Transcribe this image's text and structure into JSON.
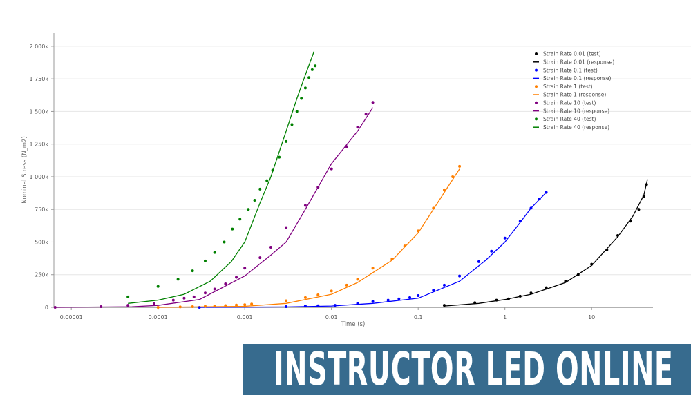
{
  "chart_data": {
    "type": "scatter",
    "xlabel": "Time (s)",
    "ylabel": "Nominal Stress (N_m2)",
    "xscale": "log",
    "xlim": [
      6.3e-06,
      51
    ],
    "ylim": [
      0,
      2100000
    ],
    "x_ticks": [
      {
        "v": 1e-05,
        "label": "0.00001"
      },
      {
        "v": 0.0001,
        "label": "0.0001"
      },
      {
        "v": 0.001,
        "label": "0.001"
      },
      {
        "v": 0.01,
        "label": "0.01"
      },
      {
        "v": 0.1,
        "label": "0.1"
      },
      {
        "v": 1,
        "label": "1"
      },
      {
        "v": 10,
        "label": "10"
      }
    ],
    "y_ticks": [
      {
        "v": 0,
        "label": "0"
      },
      {
        "v": 250000,
        "label": "250k"
      },
      {
        "v": 500000,
        "label": "500k"
      },
      {
        "v": 750000,
        "label": "750k"
      },
      {
        "v": 1000000,
        "label": "1 000k"
      },
      {
        "v": 1250000,
        "label": "1 250k"
      },
      {
        "v": 1500000,
        "label": "1 500k"
      },
      {
        "v": 1750000,
        "label": "1 750k"
      },
      {
        "v": 2000000,
        "label": "2 000k"
      }
    ],
    "grid": "horizontal",
    "legend_position": "top-right",
    "series": [
      {
        "name": "Strain Rate 0.01 (test)",
        "kind": "points",
        "color": "#000000",
        "x": [
          0.2,
          0.45,
          0.8,
          1.1,
          1.5,
          2,
          3,
          5,
          7,
          10,
          15,
          20,
          28,
          35,
          40,
          43
        ],
        "y": [
          15000,
          35000,
          55000,
          65000,
          85000,
          110000,
          150000,
          200000,
          250000,
          330000,
          440000,
          550000,
          660000,
          750000,
          850000,
          940000
        ]
      },
      {
        "name": "Strain Rate 0.01 (response)",
        "kind": "line",
        "color": "#000000",
        "x": [
          0.2,
          0.5,
          1,
          2,
          5,
          10,
          20,
          30,
          40,
          44
        ],
        "y": [
          10000,
          30000,
          60000,
          100000,
          190000,
          320000,
          540000,
          700000,
          860000,
          980000
        ]
      },
      {
        "name": "Strain Rate 0.1 (test)",
        "kind": "points",
        "color": "#0000ff",
        "x": [
          0.0003,
          0.003,
          0.005,
          0.007,
          0.011,
          0.02,
          0.03,
          0.045,
          0.06,
          0.08,
          0.1,
          0.15,
          0.2,
          0.3,
          0.5,
          0.7,
          1,
          1.5,
          2,
          2.5,
          3
        ],
        "y": [
          0,
          5000,
          10000,
          12000,
          15000,
          30000,
          45000,
          55000,
          65000,
          75000,
          90000,
          130000,
          170000,
          240000,
          350000,
          430000,
          530000,
          660000,
          760000,
          830000,
          880000
        ]
      },
      {
        "name": "Strain Rate 0.1 (response)",
        "kind": "line",
        "color": "#0000ff",
        "x": [
          0.0003,
          0.003,
          0.01,
          0.03,
          0.1,
          0.3,
          0.6,
          1,
          1.5,
          2,
          3
        ],
        "y": [
          0,
          3000,
          10000,
          30000,
          70000,
          200000,
          360000,
          500000,
          650000,
          760000,
          880000
        ]
      },
      {
        "name": "Strain Rate 1 (test)",
        "kind": "points",
        "color": "#ff7f00",
        "x": [
          0.0001,
          0.00018,
          0.00025,
          0.00035,
          0.00045,
          0.0006,
          0.0008,
          0.001,
          0.0012,
          0.003,
          0.005,
          0.007,
          0.01,
          0.015,
          0.02,
          0.03,
          0.05,
          0.07,
          0.1,
          0.15,
          0.2,
          0.25,
          0.3
        ],
        "y": [
          0,
          3000,
          5000,
          8000,
          10000,
          13000,
          17000,
          20000,
          25000,
          50000,
          75000,
          95000,
          125000,
          170000,
          215000,
          300000,
          370000,
          470000,
          585000,
          760000,
          900000,
          1000000,
          1080000
        ]
      },
      {
        "name": "Strain Rate 1 (response)",
        "kind": "line",
        "color": "#ff7f00",
        "x": [
          0.0001,
          0.001,
          0.003,
          0.01,
          0.02,
          0.05,
          0.1,
          0.2,
          0.3
        ],
        "y": [
          0,
          8000,
          30000,
          100000,
          190000,
          360000,
          570000,
          880000,
          1060000
        ]
      },
      {
        "name": "Strain Rate 10 (test)",
        "kind": "points",
        "color": "#800080",
        "x": [
          6.5e-06,
          2.2e-05,
          4.5e-05,
          9e-05,
          0.00015,
          0.0002,
          0.00026,
          0.00035,
          0.00045,
          0.0006,
          0.0008,
          0.001,
          0.0015,
          0.002,
          0.003,
          0.005,
          0.007,
          0.01,
          0.015,
          0.02,
          0.025,
          0.03
        ],
        "y": [
          0,
          5000,
          15000,
          30000,
          55000,
          70000,
          80000,
          110000,
          140000,
          180000,
          230000,
          300000,
          380000,
          460000,
          610000,
          780000,
          920000,
          1060000,
          1230000,
          1380000,
          1480000,
          1570000
        ]
      },
      {
        "name": "Strain Rate 10 (response)",
        "kind": "line",
        "color": "#800080",
        "x": [
          6.5e-06,
          5e-05,
          0.0001,
          0.0003,
          0.001,
          0.002,
          0.003,
          0.005,
          0.01,
          0.02,
          0.03
        ],
        "y": [
          0,
          5000,
          15000,
          60000,
          240000,
          400000,
          500000,
          750000,
          1100000,
          1350000,
          1530000
        ]
      },
      {
        "name": "Strain Rate 40 (test)",
        "kind": "points",
        "color": "#008000",
        "x": [
          4.5e-05,
          0.0001,
          0.00017,
          0.00025,
          0.00035,
          0.00045,
          0.00058,
          0.00072,
          0.00088,
          0.0011,
          0.0013,
          0.0015,
          0.0018,
          0.0021,
          0.0025,
          0.003,
          0.0035,
          0.004,
          0.0045,
          0.005,
          0.0055,
          0.006,
          0.0065
        ],
        "y": [
          80000,
          160000,
          215000,
          280000,
          355000,
          420000,
          500000,
          600000,
          675000,
          750000,
          820000,
          905000,
          970000,
          1050000,
          1150000,
          1270000,
          1400000,
          1500000,
          1600000,
          1680000,
          1760000,
          1820000,
          1850000
        ]
      },
      {
        "name": "Strain Rate 40 (response)",
        "kind": "line",
        "color": "#008000",
        "x": [
          4.5e-05,
          0.0001,
          0.0002,
          0.0004,
          0.0007,
          0.001,
          0.0015,
          0.002,
          0.003,
          0.004,
          0.005,
          0.0063
        ],
        "y": [
          30000,
          55000,
          100000,
          200000,
          350000,
          500000,
          800000,
          1000000,
          1350000,
          1600000,
          1780000,
          1960000
        ]
      }
    ]
  },
  "banner": {
    "text": "INSTRUCTOR LED ONLINE",
    "color": "#376b8e"
  }
}
